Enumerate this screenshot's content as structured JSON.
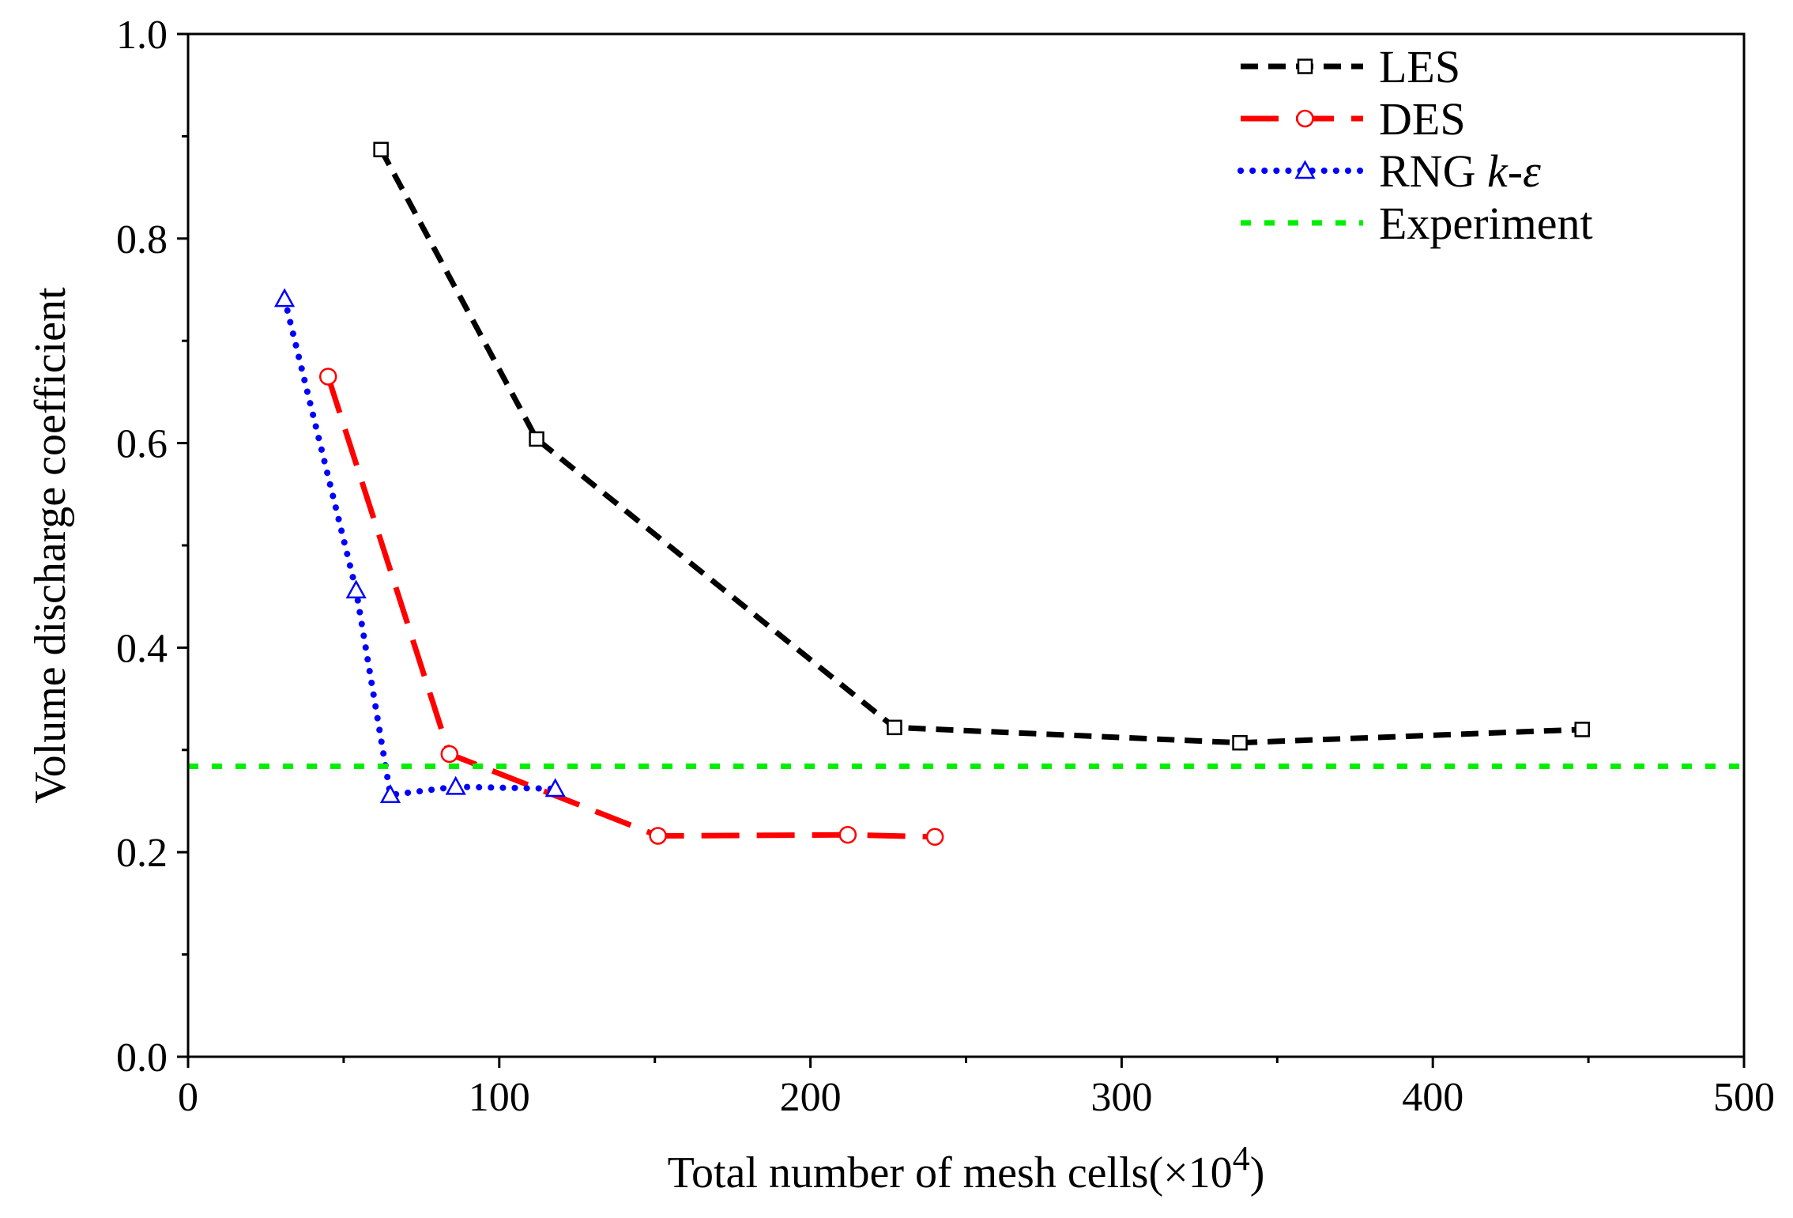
{
  "chart_data": {
    "type": "line",
    "title": "",
    "xlabel": "Total number of mesh cells(×10",
    "xlabel_superscript": "4",
    "xlabel_suffix": ")",
    "ylabel": "Volume discharge coefficient",
    "xlim": [
      0,
      500
    ],
    "ylim": [
      0.0,
      1.0
    ],
    "xticks": [
      0,
      100,
      200,
      300,
      400,
      500
    ],
    "xtick_labels": [
      "0",
      "100",
      "200",
      "300",
      "400",
      "500"
    ],
    "xminor": [
      50,
      150,
      250,
      350,
      450
    ],
    "yticks": [
      0.0,
      0.2,
      0.4,
      0.6,
      0.8,
      1.0
    ],
    "ytick_labels": [
      "0.0",
      "0.2",
      "0.4",
      "0.6",
      "0.8",
      "1.0"
    ],
    "yminor": [
      0.1,
      0.3,
      0.5,
      0.7,
      0.9
    ],
    "grid": false,
    "legend_position": "top-right",
    "series": [
      {
        "name": "LES",
        "legend_parts": [
          "LES"
        ],
        "color": "#000000",
        "marker": "square",
        "dash": "dashed-short",
        "x": [
          62,
          112,
          227,
          338,
          448
        ],
        "y": [
          0.887,
          0.604,
          0.322,
          0.307,
          0.32
        ]
      },
      {
        "name": "DES",
        "legend_parts": [
          "DES"
        ],
        "color": "#ff0000",
        "marker": "circle",
        "dash": "dashed-long",
        "x": [
          45,
          84,
          151,
          212,
          240
        ],
        "y": [
          0.665,
          0.296,
          0.216,
          0.217,
          0.215
        ]
      },
      {
        "name": "RNG k-ε",
        "legend_parts": [
          "RNG ",
          "k",
          "-",
          "ε"
        ],
        "color": "#0000ff",
        "marker": "triangle",
        "dash": "dotted",
        "x": [
          31,
          54,
          65,
          86,
          118
        ],
        "y": [
          0.741,
          0.456,
          0.256,
          0.264,
          0.262
        ]
      },
      {
        "name": "Experiment",
        "legend_parts": [
          "Experiment"
        ],
        "color": "#00ee00",
        "marker": "none",
        "dash": "dotted-green",
        "x": [
          0,
          500
        ],
        "y": [
          0.284,
          0.284
        ]
      }
    ]
  }
}
